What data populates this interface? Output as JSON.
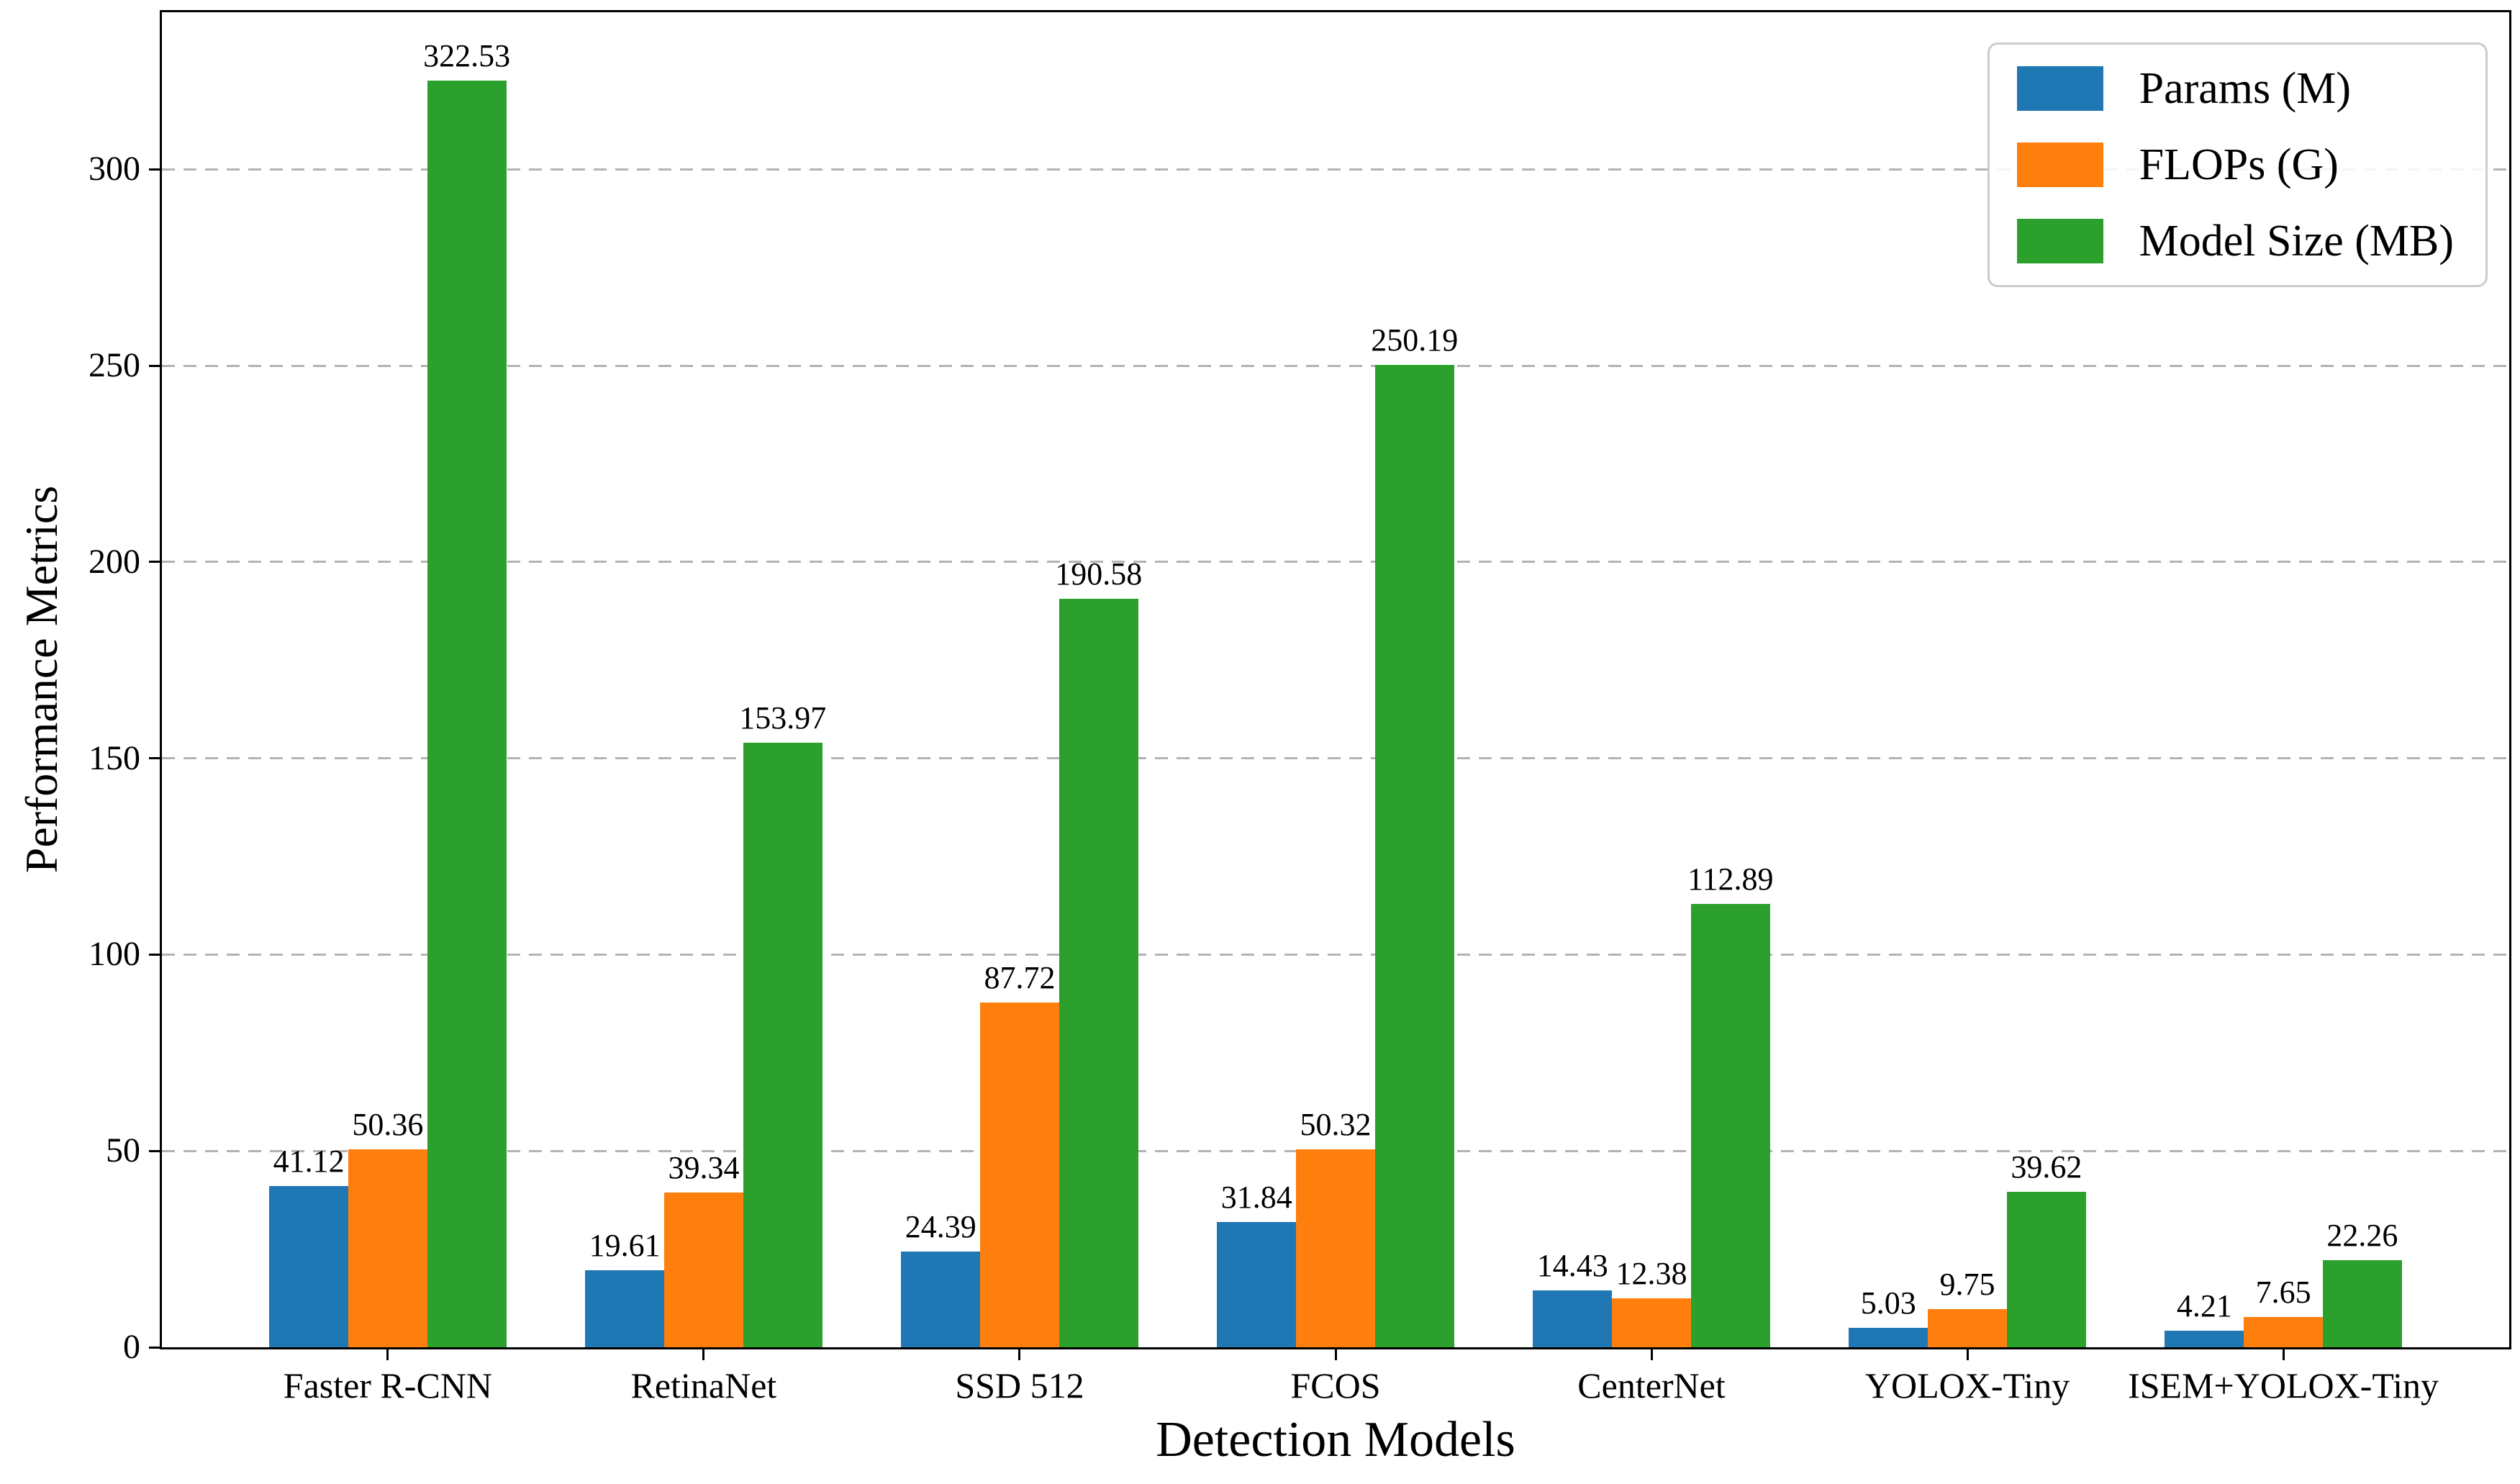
{
  "chart_data": {
    "type": "bar",
    "title": "",
    "xlabel": "Detection Models",
    "ylabel": "Performance Metrics",
    "categories": [
      "Faster R-CNN",
      "RetinaNet",
      "SSD 512",
      "FCOS",
      "CenterNet",
      "YOLOX-Tiny",
      "ISEM+YOLOX-Tiny"
    ],
    "series": [
      {
        "name": "Params (M)",
        "color": "#1f77b4",
        "values": [
          41.12,
          19.61,
          24.39,
          31.84,
          14.43,
          5.03,
          4.21
        ]
      },
      {
        "name": "FLOPs (G)",
        "color": "#ff7f0e",
        "values": [
          50.36,
          39.34,
          87.72,
          50.32,
          12.38,
          9.75,
          7.65
        ]
      },
      {
        "name": "Model Size (MB)",
        "color": "#2ca02c",
        "values": [
          322.53,
          153.97,
          190.58,
          250.19,
          112.89,
          39.62,
          22.26
        ]
      }
    ],
    "ylim": [
      0,
      340
    ],
    "yticks": [
      0,
      50,
      100,
      150,
      200,
      250,
      300
    ],
    "grid": "horizontal-dashed",
    "legend_position": "upper-right",
    "bar_value_labels": true,
    "bar_width_fraction": 0.25
  },
  "colors": {
    "grid": "#b3b3b3",
    "axis": "#000000",
    "legend_border": "#cccccc",
    "background": "#ffffff"
  }
}
